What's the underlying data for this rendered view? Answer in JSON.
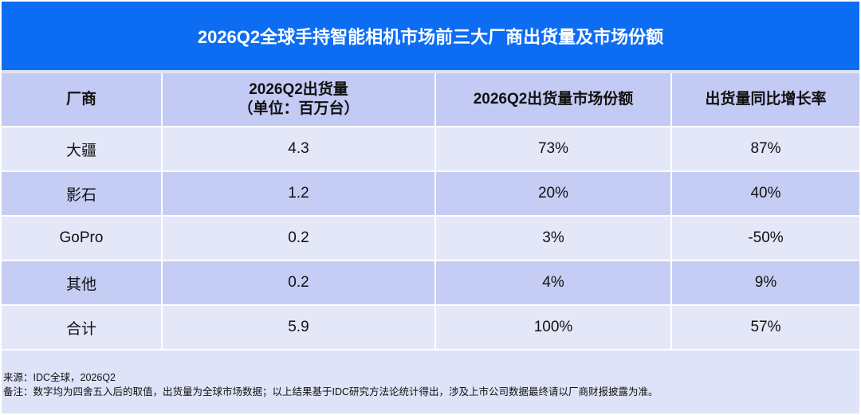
{
  "title": "2026Q2全球手持智能相机市场前三大厂商出货量及市场份额",
  "chart_data": {
    "type": "table",
    "title": "2026Q2全球手持智能相机市场前三大厂商出货量及市场份额",
    "columns": [
      {
        "line1": "厂商",
        "line2": ""
      },
      {
        "line1": "2026Q2出货量",
        "line2": "（单位：百万台）"
      },
      {
        "line1": "2026Q2出货量市场份额",
        "line2": ""
      },
      {
        "line1": "出货量同比增长率",
        "line2": ""
      }
    ],
    "rows": [
      {
        "vendor": "大疆",
        "shipments": "4.3",
        "share": "73%",
        "growth": "87%"
      },
      {
        "vendor": "影石",
        "shipments": "1.2",
        "share": "20%",
        "growth": "40%"
      },
      {
        "vendor": "GoPro",
        "shipments": "0.2",
        "share": "3%",
        "growth": "-50%"
      },
      {
        "vendor": "其他",
        "shipments": "0.2",
        "share": "4%",
        "growth": "9%"
      },
      {
        "vendor": "合计",
        "shipments": "5.9",
        "share": "100%",
        "growth": "57%"
      }
    ]
  },
  "footer": {
    "source": "来源：IDC全球，2026Q2",
    "note": "备注：数字均为四舍五入后的取值，出货量为全球市场数据；以上结果基于IDC研究方法论统计得出，涉及上市公司数据最终请以厂商财报披露为准。"
  },
  "colors": {
    "title_bg": "#0d6df2",
    "header_bg": "#c3caf3",
    "row_light": "#e4e7f8",
    "row_dark": "#c6cdf4"
  }
}
